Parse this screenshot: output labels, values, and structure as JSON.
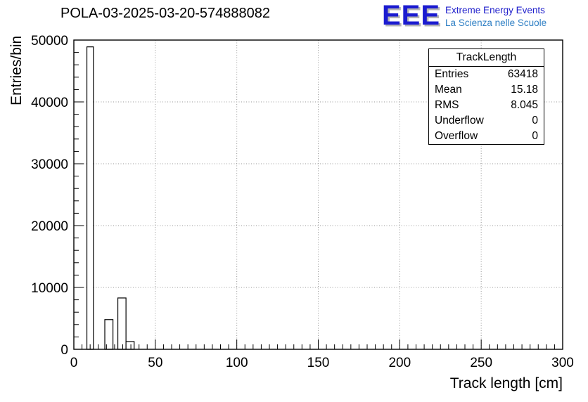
{
  "header": {
    "title": "POLA-03-2025-03-20-574888082",
    "logo": {
      "text": "EEE",
      "line1": "Extreme Energy Events",
      "line2": "La Scienza nelle Scuole",
      "eee_color": "#1b1bd0",
      "line1_color": "#2222cc",
      "line2_color": "#2e7fc4"
    }
  },
  "stats": {
    "title": "TrackLength",
    "rows": [
      {
        "label": "Entries",
        "value": "63418"
      },
      {
        "label": "Mean",
        "value": "15.18"
      },
      {
        "label": "RMS",
        "value": "8.045"
      },
      {
        "label": "Underflow",
        "value": "0"
      },
      {
        "label": "Overflow",
        "value": "0"
      }
    ]
  },
  "chart_data": {
    "type": "bar",
    "title": "POLA-03-2025-03-20-574888082",
    "xlabel": "Track length [cm]",
    "ylabel": "Entries/bin",
    "xlim": [
      0,
      300
    ],
    "ylim": [
      0,
      50000
    ],
    "x_ticks": [
      0,
      50,
      100,
      150,
      200,
      250,
      300
    ],
    "y_ticks": [
      0,
      10000,
      20000,
      30000,
      40000,
      50000
    ],
    "grid": "dotted",
    "grid_color": "#999999",
    "bar_fill": "#ffffff",
    "bar_stroke": "#000000",
    "bins": [
      {
        "x0": 8,
        "x1": 12,
        "y": 48900
      },
      {
        "x0": 19,
        "x1": 24,
        "y": 4800
      },
      {
        "x0": 27,
        "x1": 32,
        "y": 8300
      },
      {
        "x0": 32,
        "x1": 37,
        "y": 1250
      }
    ]
  }
}
